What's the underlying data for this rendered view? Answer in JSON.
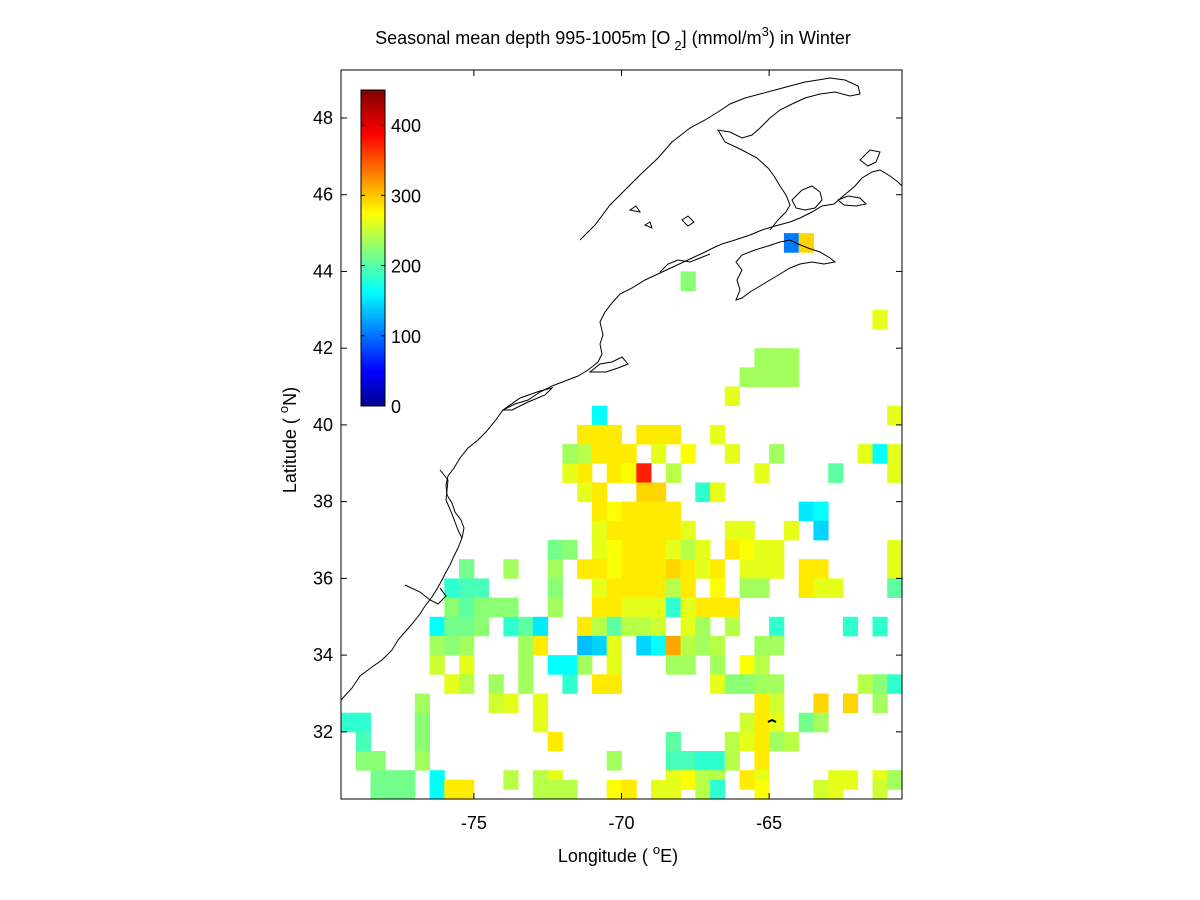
{
  "title": {
    "prefix": "Seasonal mean depth 995-1005m [O",
    "subscript": "2",
    "middle": "] (mmol/m",
    "superscript": "3",
    "suffix": ") in  Winter"
  },
  "axes": {
    "xlabel": {
      "prefix": "Longitude ( ",
      "degree": "o",
      "suffix": "E)"
    },
    "ylabel": {
      "prefix": "Latitude ( ",
      "degree": "o",
      "suffix": "N)"
    },
    "xlim": [
      -79.5,
      -60.5
    ],
    "ylim": [
      30.25,
      49.25
    ],
    "xticks": [
      -75,
      -70,
      -65
    ],
    "xtick_labels": [
      "-75",
      "-70",
      "-65"
    ],
    "yticks": [
      32,
      34,
      36,
      38,
      40,
      42,
      44,
      46,
      48
    ],
    "ytick_labels": [
      "32",
      "34",
      "36",
      "38",
      "40",
      "42",
      "44",
      "46",
      "48"
    ]
  },
  "colorbar": {
    "range": [
      0,
      450
    ],
    "ticks": [
      0,
      100,
      200,
      300,
      400
    ],
    "tick_labels": [
      "0",
      "100",
      "200",
      "300",
      "400"
    ],
    "colormap": "jet"
  },
  "chart_data": {
    "type": "heatmap",
    "cell_size_deg": 1,
    "x_centers": [
      -79,
      -78,
      -77,
      -76,
      -75,
      -74,
      -73,
      -72,
      -71,
      -70,
      -69,
      -68,
      -67,
      -66,
      -65,
      -64,
      -63,
      -62,
      -61
    ],
    "y_centers": [
      30.75,
      31.75,
      32.75,
      33.75,
      34.75,
      35.75,
      36.75,
      37.75,
      38.75,
      39.75,
      40.75,
      41.75,
      42.75,
      43.75,
      44.75
    ],
    "cells": [
      [
        -64.25,
        44.75,
        110
      ],
      [
        -63.75,
        44.75,
        300
      ],
      [
        -67.75,
        43.75,
        230
      ],
      [
        -61.25,
        42.75,
        270
      ],
      [
        -65.25,
        41.75,
        240
      ],
      [
        -64.75,
        41.75,
        240
      ],
      [
        -64.25,
        41.75,
        240
      ],
      [
        -65.75,
        41.25,
        240
      ],
      [
        -65.25,
        41.25,
        240
      ],
      [
        -64.75,
        41.25,
        240
      ],
      [
        -64.25,
        41.25,
        240
      ],
      [
        -66.25,
        40.75,
        270
      ],
      [
        -70.75,
        40.25,
        170
      ],
      [
        -60.75,
        40.25,
        270
      ],
      [
        -71.25,
        39.75,
        290
      ],
      [
        -70.75,
        39.75,
        290
      ],
      [
        -70.25,
        39.75,
        290
      ],
      [
        -69.25,
        39.75,
        290
      ],
      [
        -68.75,
        39.75,
        290
      ],
      [
        -68.25,
        39.75,
        290
      ],
      [
        -66.75,
        39.75,
        270
      ],
      [
        -71.75,
        39.25,
        240
      ],
      [
        -71.25,
        39.25,
        250
      ],
      [
        -70.75,
        39.25,
        290
      ],
      [
        -70.25,
        39.25,
        290
      ],
      [
        -69.75,
        39.25,
        290
      ],
      [
        -68.75,
        39.25,
        270
      ],
      [
        -67.75,
        39.25,
        280
      ],
      [
        -66.25,
        39.25,
        270
      ],
      [
        -64.75,
        39.25,
        240
      ],
      [
        -61.75,
        39.25,
        270
      ],
      [
        -61.25,
        39.25,
        170
      ],
      [
        -60.75,
        39.25,
        270
      ],
      [
        -71.75,
        38.75,
        270
      ],
      [
        -71.25,
        38.75,
        290
      ],
      [
        -70.25,
        38.75,
        290
      ],
      [
        -69.75,
        38.75,
        280
      ],
      [
        -69.25,
        38.75,
        380
      ],
      [
        -68.25,
        38.75,
        250
      ],
      [
        -65.25,
        38.75,
        270
      ],
      [
        -62.75,
        38.75,
        210
      ],
      [
        -60.75,
        38.75,
        270
      ],
      [
        -71.25,
        38.25,
        270
      ],
      [
        -70.75,
        38.25,
        290
      ],
      [
        -69.25,
        38.25,
        300
      ],
      [
        -68.75,
        38.25,
        300
      ],
      [
        -67.25,
        38.25,
        190
      ],
      [
        -66.75,
        38.25,
        270
      ],
      [
        -70.75,
        37.75,
        290
      ],
      [
        -70.25,
        37.75,
        280
      ],
      [
        -69.75,
        37.75,
        290
      ],
      [
        -69.25,
        37.75,
        290
      ],
      [
        -68.75,
        37.75,
        290
      ],
      [
        -68.25,
        37.75,
        290
      ],
      [
        -63.75,
        37.75,
        160
      ],
      [
        -63.25,
        37.75,
        170
      ],
      [
        -70.75,
        37.25,
        270
      ],
      [
        -70.25,
        37.25,
        290
      ],
      [
        -69.75,
        37.25,
        290
      ],
      [
        -69.25,
        37.25,
        290
      ],
      [
        -68.75,
        37.25,
        290
      ],
      [
        -68.25,
        37.25,
        290
      ],
      [
        -67.75,
        37.25,
        270
      ],
      [
        -66.25,
        37.25,
        270
      ],
      [
        -65.75,
        37.25,
        270
      ],
      [
        -64.25,
        37.25,
        270
      ],
      [
        -63.25,
        37.25,
        150
      ],
      [
        -72.25,
        36.75,
        220
      ],
      [
        -71.75,
        36.75,
        230
      ],
      [
        -70.75,
        36.75,
        270
      ],
      [
        -70.25,
        36.75,
        280
      ],
      [
        -69.75,
        36.75,
        290
      ],
      [
        -69.25,
        36.75,
        290
      ],
      [
        -68.75,
        36.75,
        290
      ],
      [
        -68.25,
        36.75,
        270
      ],
      [
        -67.75,
        36.75,
        250
      ],
      [
        -67.25,
        36.75,
        270
      ],
      [
        -66.25,
        36.75,
        290
      ],
      [
        -65.75,
        36.75,
        280
      ],
      [
        -65.25,
        36.75,
        270
      ],
      [
        -64.75,
        36.75,
        270
      ],
      [
        -60.75,
        36.75,
        270
      ],
      [
        -75.25,
        36.25,
        220
      ],
      [
        -73.75,
        36.25,
        240
      ],
      [
        -72.25,
        36.25,
        240
      ],
      [
        -71.25,
        36.25,
        290
      ],
      [
        -70.75,
        36.25,
        290
      ],
      [
        -70.25,
        36.25,
        280
      ],
      [
        -69.75,
        36.25,
        290
      ],
      [
        -69.25,
        36.25,
        290
      ],
      [
        -68.75,
        36.25,
        290
      ],
      [
        -68.25,
        36.25,
        300
      ],
      [
        -67.75,
        36.25,
        290
      ],
      [
        -67.25,
        36.25,
        270
      ],
      [
        -66.75,
        36.25,
        290
      ],
      [
        -65.75,
        36.25,
        270
      ],
      [
        -65.25,
        36.25,
        270
      ],
      [
        -64.75,
        36.25,
        270
      ],
      [
        -63.75,
        36.25,
        290
      ],
      [
        -63.25,
        36.25,
        290
      ],
      [
        -60.75,
        36.25,
        270
      ],
      [
        -75.75,
        35.75,
        190
      ],
      [
        -75.25,
        35.75,
        200
      ],
      [
        -74.75,
        35.75,
        200
      ],
      [
        -72.25,
        35.75,
        230
      ],
      [
        -70.75,
        35.75,
        270
      ],
      [
        -70.25,
        35.75,
        290
      ],
      [
        -69.75,
        35.75,
        290
      ],
      [
        -69.25,
        35.75,
        290
      ],
      [
        -68.75,
        35.75,
        290
      ],
      [
        -68.25,
        35.75,
        250
      ],
      [
        -67.75,
        35.75,
        290
      ],
      [
        -66.75,
        35.75,
        280
      ],
      [
        -65.75,
        35.75,
        240
      ],
      [
        -65.25,
        35.75,
        240
      ],
      [
        -63.75,
        35.75,
        290
      ],
      [
        -63.25,
        35.75,
        270
      ],
      [
        -62.75,
        35.75,
        270
      ],
      [
        -60.75,
        35.75,
        210
      ],
      [
        -75.75,
        35.25,
        230
      ],
      [
        -75.25,
        35.25,
        210
      ],
      [
        -74.75,
        35.25,
        230
      ],
      [
        -74.25,
        35.25,
        230
      ],
      [
        -73.75,
        35.25,
        230
      ],
      [
        -72.25,
        35.25,
        240
      ],
      [
        -70.75,
        35.25,
        290
      ],
      [
        -70.25,
        35.25,
        290
      ],
      [
        -69.75,
        35.25,
        270
      ],
      [
        -69.25,
        35.25,
        270
      ],
      [
        -68.75,
        35.25,
        270
      ],
      [
        -68.25,
        35.25,
        190
      ],
      [
        -67.75,
        35.25,
        270
      ],
      [
        -67.25,
        35.25,
        290
      ],
      [
        -66.75,
        35.25,
        290
      ],
      [
        -66.25,
        35.25,
        290
      ],
      [
        -76.25,
        34.75,
        170
      ],
      [
        -75.75,
        34.75,
        220
      ],
      [
        -75.25,
        34.75,
        220
      ],
      [
        -74.75,
        34.75,
        230
      ],
      [
        -73.75,
        34.75,
        190
      ],
      [
        -73.25,
        34.75,
        210
      ],
      [
        -72.75,
        34.75,
        160
      ],
      [
        -71.25,
        34.75,
        290
      ],
      [
        -70.75,
        34.75,
        250
      ],
      [
        -70.25,
        34.75,
        210
      ],
      [
        -69.75,
        34.75,
        250
      ],
      [
        -69.25,
        34.75,
        250
      ],
      [
        -68.75,
        34.75,
        260
      ],
      [
        -67.75,
        34.75,
        270
      ],
      [
        -67.25,
        34.75,
        240
      ],
      [
        -66.25,
        34.75,
        250
      ],
      [
        -64.75,
        34.75,
        190
      ],
      [
        -62.25,
        34.75,
        190
      ],
      [
        -61.25,
        34.75,
        190
      ],
      [
        -76.25,
        34.25,
        240
      ],
      [
        -75.75,
        34.25,
        230
      ],
      [
        -75.25,
        34.25,
        240
      ],
      [
        -73.25,
        34.25,
        240
      ],
      [
        -72.75,
        34.25,
        290
      ],
      [
        -71.25,
        34.25,
        140
      ],
      [
        -70.75,
        34.25,
        150
      ],
      [
        -70.25,
        34.25,
        270
      ],
      [
        -69.25,
        34.25,
        150
      ],
      [
        -68.75,
        34.25,
        170
      ],
      [
        -68.25,
        34.25,
        320
      ],
      [
        -67.75,
        34.25,
        250
      ],
      [
        -67.25,
        34.25,
        240
      ],
      [
        -66.75,
        34.25,
        250
      ],
      [
        -65.25,
        34.25,
        240
      ],
      [
        -64.75,
        34.25,
        240
      ],
      [
        -76.25,
        33.75,
        260
      ],
      [
        -75.25,
        33.75,
        270
      ],
      [
        -73.25,
        33.75,
        240
      ],
      [
        -72.25,
        33.75,
        170
      ],
      [
        -71.75,
        33.75,
        170
      ],
      [
        -71.25,
        33.75,
        240
      ],
      [
        -70.25,
        33.75,
        270
      ],
      [
        -68.25,
        33.75,
        240
      ],
      [
        -67.75,
        33.75,
        240
      ],
      [
        -66.75,
        33.75,
        240
      ],
      [
        -65.75,
        33.75,
        280
      ],
      [
        -65.25,
        33.75,
        250
      ],
      [
        -75.75,
        33.25,
        270
      ],
      [
        -75.25,
        33.25,
        250
      ],
      [
        -74.25,
        33.25,
        240
      ],
      [
        -73.25,
        33.25,
        240
      ],
      [
        -71.75,
        33.25,
        190
      ],
      [
        -70.75,
        33.25,
        290
      ],
      [
        -70.25,
        33.25,
        290
      ],
      [
        -66.75,
        33.25,
        270
      ],
      [
        -66.25,
        33.25,
        230
      ],
      [
        -65.75,
        33.25,
        230
      ],
      [
        -65.25,
        33.25,
        240
      ],
      [
        -64.75,
        33.25,
        240
      ],
      [
        -61.75,
        33.25,
        250
      ],
      [
        -61.25,
        33.25,
        230
      ],
      [
        -60.75,
        33.25,
        190
      ],
      [
        -76.75,
        32.75,
        240
      ],
      [
        -74.25,
        32.75,
        260
      ],
      [
        -73.75,
        32.75,
        270
      ],
      [
        -72.75,
        32.75,
        270
      ],
      [
        -65.25,
        32.75,
        290
      ],
      [
        -64.75,
        32.75,
        260
      ],
      [
        -63.25,
        32.75,
        300
      ],
      [
        -62.25,
        32.75,
        300
      ],
      [
        -61.25,
        32.75,
        240
      ],
      [
        -79.25,
        32.25,
        190
      ],
      [
        -78.75,
        32.25,
        190
      ],
      [
        -76.75,
        32.25,
        230
      ],
      [
        -72.75,
        32.25,
        270
      ],
      [
        -65.75,
        32.25,
        260
      ],
      [
        -65.25,
        32.25,
        290
      ],
      [
        -64.75,
        32.25,
        270
      ],
      [
        -63.75,
        32.25,
        220
      ],
      [
        -63.25,
        32.25,
        240
      ],
      [
        -78.75,
        31.75,
        200
      ],
      [
        -76.75,
        31.75,
        230
      ],
      [
        -72.25,
        31.75,
        290
      ],
      [
        -68.25,
        31.75,
        210
      ],
      [
        -66.25,
        31.75,
        250
      ],
      [
        -65.75,
        31.75,
        270
      ],
      [
        -65.25,
        31.75,
        290
      ],
      [
        -64.75,
        31.75,
        240
      ],
      [
        -64.25,
        31.75,
        250
      ],
      [
        -78.75,
        31.25,
        230
      ],
      [
        -78.25,
        31.25,
        230
      ],
      [
        -76.75,
        31.25,
        240
      ],
      [
        -70.25,
        31.25,
        240
      ],
      [
        -68.25,
        31.25,
        200
      ],
      [
        -67.75,
        31.25,
        200
      ],
      [
        -67.25,
        31.25,
        190
      ],
      [
        -66.75,
        31.25,
        190
      ],
      [
        -66.25,
        31.25,
        250
      ],
      [
        -65.25,
        31.25,
        290
      ],
      [
        -78.25,
        30.75,
        220
      ],
      [
        -77.75,
        30.75,
        220
      ],
      [
        -77.25,
        30.75,
        220
      ],
      [
        -76.25,
        30.75,
        170
      ],
      [
        -73.75,
        30.75,
        250
      ],
      [
        -72.75,
        30.75,
        250
      ],
      [
        -72.25,
        30.75,
        270
      ],
      [
        -68.25,
        30.75,
        270
      ],
      [
        -67.75,
        30.75,
        280
      ],
      [
        -67.25,
        30.75,
        250
      ],
      [
        -66.75,
        30.75,
        250
      ],
      [
        -65.75,
        30.75,
        290
      ],
      [
        -65.25,
        30.75,
        270
      ],
      [
        -62.75,
        30.75,
        270
      ],
      [
        -62.25,
        30.75,
        270
      ],
      [
        -61.25,
        30.75,
        270
      ],
      [
        -60.75,
        30.75,
        240
      ],
      [
        -78.25,
        30.5,
        220
      ],
      [
        -77.75,
        30.5,
        220
      ],
      [
        -77.25,
        30.5,
        220
      ],
      [
        -76.25,
        30.5,
        170
      ],
      [
        -75.75,
        30.5,
        290
      ],
      [
        -75.25,
        30.5,
        290
      ],
      [
        -72.75,
        30.5,
        250
      ],
      [
        -72.25,
        30.5,
        250
      ],
      [
        -71.75,
        30.5,
        250
      ],
      [
        -70.25,
        30.5,
        280
      ],
      [
        -69.75,
        30.5,
        290
      ],
      [
        -68.75,
        30.5,
        270
      ],
      [
        -68.25,
        30.5,
        270
      ],
      [
        -67.25,
        30.5,
        250
      ],
      [
        -66.75,
        30.5,
        190
      ],
      [
        -65.25,
        30.5,
        280
      ],
      [
        -63.25,
        30.5,
        260
      ],
      [
        -62.75,
        30.5,
        270
      ],
      [
        -61.25,
        30.5,
        260
      ]
    ]
  }
}
